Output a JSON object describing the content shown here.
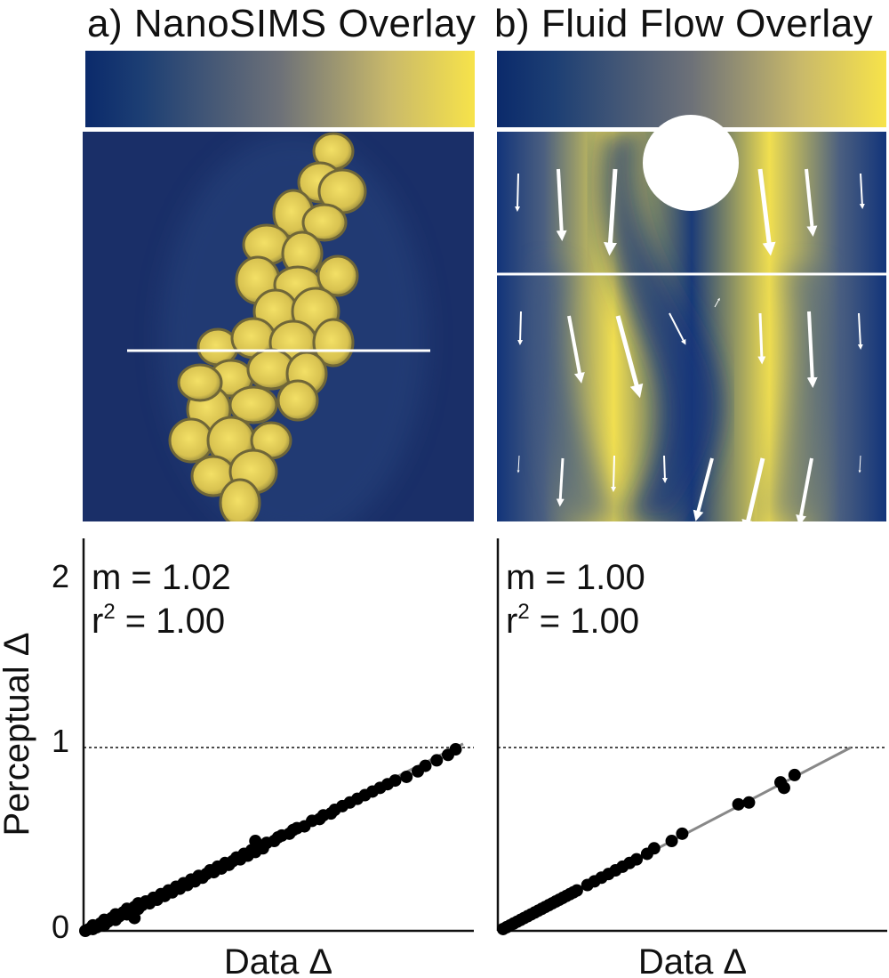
{
  "panels": {
    "a": {
      "title": "a) NanoSIMS Overlay",
      "colorbar": [
        "#0b2a6b",
        "#1d3f74",
        "#6d7178",
        "#c9b96a",
        "#f7e34a"
      ]
    },
    "b": {
      "title": "b) Fluid Flow Overlay",
      "colorbar": [
        "#0b2a6b",
        "#1d3f74",
        "#6d7178",
        "#c9b96a",
        "#f7e34a"
      ]
    }
  },
  "chart_data": [
    {
      "type": "scatter",
      "title": "",
      "xlabel": "Data Δ",
      "ylabel": "Perceptual Δ",
      "ylim": [
        0,
        2
      ],
      "yticks": [
        0,
        1,
        2
      ],
      "xticks": [],
      "reference_line": 1,
      "fit": {
        "slope": 1.02,
        "label_m": "m = 1.02",
        "label_r": "r",
        "label_r_sup": "2",
        "label_r_val": " = 1.00"
      },
      "points": [
        [
          0.0,
          0.0
        ],
        [
          0.01,
          0.01
        ],
        [
          0.02,
          0.01
        ],
        [
          0.02,
          0.03
        ],
        [
          0.03,
          0.02
        ],
        [
          0.04,
          0.04
        ],
        [
          0.05,
          0.03
        ],
        [
          0.05,
          0.06
        ],
        [
          0.06,
          0.05
        ],
        [
          0.07,
          0.07
        ],
        [
          0.08,
          0.06
        ],
        [
          0.08,
          0.09
        ],
        [
          0.09,
          0.08
        ],
        [
          0.1,
          0.1
        ],
        [
          0.11,
          0.09
        ],
        [
          0.11,
          0.12
        ],
        [
          0.12,
          0.11
        ],
        [
          0.13,
          0.13
        ],
        [
          0.14,
          0.12
        ],
        [
          0.14,
          0.15
        ],
        [
          0.13,
          0.07
        ],
        [
          0.15,
          0.14
        ],
        [
          0.16,
          0.16
        ],
        [
          0.17,
          0.15
        ],
        [
          0.18,
          0.18
        ],
        [
          0.19,
          0.17
        ],
        [
          0.2,
          0.2
        ],
        [
          0.21,
          0.19
        ],
        [
          0.22,
          0.22
        ],
        [
          0.23,
          0.21
        ],
        [
          0.24,
          0.24
        ],
        [
          0.25,
          0.23
        ],
        [
          0.26,
          0.26
        ],
        [
          0.27,
          0.25
        ],
        [
          0.28,
          0.28
        ],
        [
          0.29,
          0.27
        ],
        [
          0.3,
          0.3
        ],
        [
          0.31,
          0.29
        ],
        [
          0.32,
          0.31
        ],
        [
          0.33,
          0.33
        ],
        [
          0.34,
          0.32
        ],
        [
          0.35,
          0.35
        ],
        [
          0.36,
          0.34
        ],
        [
          0.37,
          0.37
        ],
        [
          0.38,
          0.36
        ],
        [
          0.39,
          0.38
        ],
        [
          0.4,
          0.4
        ],
        [
          0.41,
          0.39
        ],
        [
          0.42,
          0.42
        ],
        [
          0.43,
          0.41
        ],
        [
          0.44,
          0.44
        ],
        [
          0.45,
          0.43
        ],
        [
          0.46,
          0.46
        ],
        [
          0.47,
          0.45
        ],
        [
          0.45,
          0.49
        ],
        [
          0.48,
          0.48
        ],
        [
          0.5,
          0.49
        ],
        [
          0.51,
          0.51
        ],
        [
          0.52,
          0.52
        ],
        [
          0.54,
          0.53
        ],
        [
          0.55,
          0.55
        ],
        [
          0.56,
          0.56
        ],
        [
          0.58,
          0.57
        ],
        [
          0.6,
          0.6
        ],
        [
          0.62,
          0.61
        ],
        [
          0.63,
          0.63
        ],
        [
          0.65,
          0.64
        ],
        [
          0.66,
          0.66
        ],
        [
          0.68,
          0.68
        ],
        [
          0.7,
          0.7
        ],
        [
          0.72,
          0.72
        ],
        [
          0.74,
          0.74
        ],
        [
          0.76,
          0.76
        ],
        [
          0.78,
          0.78
        ],
        [
          0.8,
          0.8
        ],
        [
          0.82,
          0.82
        ],
        [
          0.85,
          0.84
        ],
        [
          0.88,
          0.87
        ],
        [
          0.9,
          0.9
        ],
        [
          0.93,
          0.93
        ],
        [
          0.96,
          0.96
        ],
        [
          0.98,
          0.99
        ]
      ]
    },
    {
      "type": "scatter",
      "title": "",
      "xlabel": "Data Δ",
      "ylabel": "",
      "ylim": [
        0,
        2
      ],
      "xticks": [],
      "reference_line": 1,
      "fit": {
        "slope": 1.0,
        "label_m": "m = 1.00",
        "label_r": "r",
        "label_r_sup": "2",
        "label_r_val": " = 1.00"
      },
      "points": [
        [
          0.01,
          0.01
        ],
        [
          0.02,
          0.02
        ],
        [
          0.03,
          0.03
        ],
        [
          0.04,
          0.04
        ],
        [
          0.05,
          0.05
        ],
        [
          0.06,
          0.06
        ],
        [
          0.07,
          0.07
        ],
        [
          0.08,
          0.08
        ],
        [
          0.09,
          0.09
        ],
        [
          0.1,
          0.1
        ],
        [
          0.11,
          0.11
        ],
        [
          0.12,
          0.12
        ],
        [
          0.13,
          0.13
        ],
        [
          0.14,
          0.14
        ],
        [
          0.15,
          0.15
        ],
        [
          0.16,
          0.16
        ],
        [
          0.17,
          0.17
        ],
        [
          0.18,
          0.18
        ],
        [
          0.19,
          0.19
        ],
        [
          0.2,
          0.2
        ],
        [
          0.21,
          0.21
        ],
        [
          0.22,
          0.22
        ],
        [
          0.25,
          0.25
        ],
        [
          0.27,
          0.27
        ],
        [
          0.29,
          0.29
        ],
        [
          0.31,
          0.31
        ],
        [
          0.33,
          0.33
        ],
        [
          0.35,
          0.35
        ],
        [
          0.37,
          0.37
        ],
        [
          0.39,
          0.39
        ],
        [
          0.42,
          0.42
        ],
        [
          0.44,
          0.45
        ],
        [
          0.49,
          0.49
        ],
        [
          0.52,
          0.53
        ],
        [
          0.68,
          0.69
        ],
        [
          0.71,
          0.7
        ],
        [
          0.8,
          0.81
        ],
        [
          0.81,
          0.78
        ],
        [
          0.84,
          0.85
        ]
      ]
    }
  ]
}
